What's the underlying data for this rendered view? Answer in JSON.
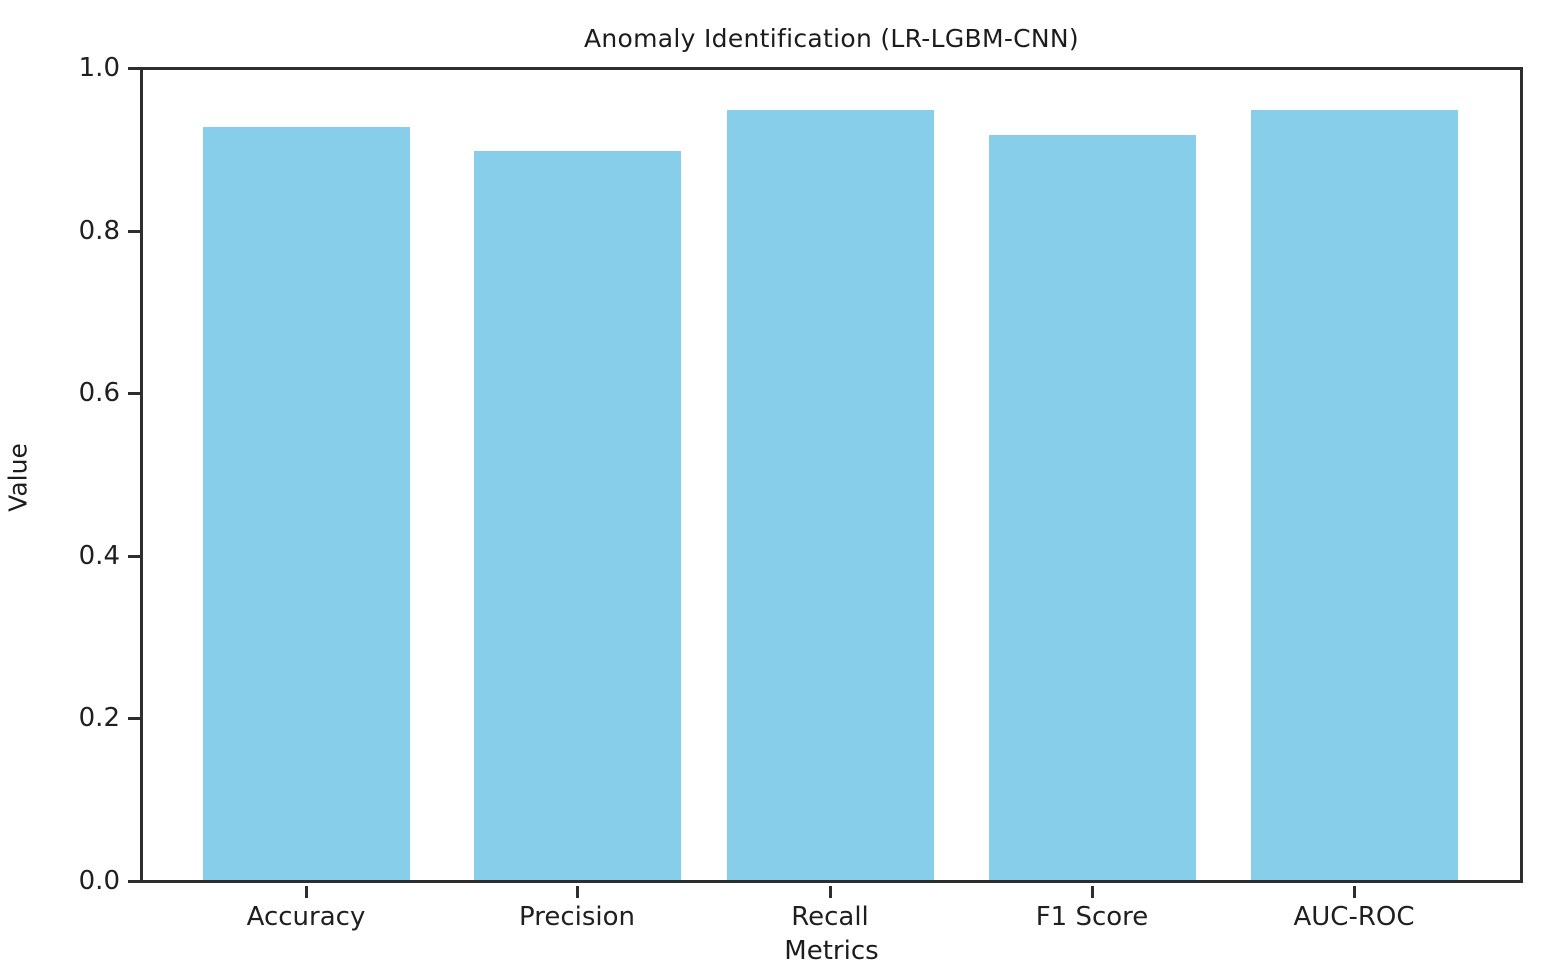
{
  "chart_data": {
    "type": "bar",
    "title": "Anomaly Identification (LR-LGBM-CNN)",
    "xlabel": "Metrics",
    "ylabel": "Value",
    "categories": [
      "Accuracy",
      "Precision",
      "Recall",
      "F1 Score",
      "AUC-ROC"
    ],
    "values": [
      0.93,
      0.9,
      0.95,
      0.92,
      0.95
    ],
    "ylim": [
      0.0,
      1.0
    ],
    "ytick_labels": [
      "0.0",
      "0.2",
      "0.4",
      "0.6",
      "0.8",
      "1.0"
    ],
    "bar_color": "#87CEEB",
    "spine_color": "#2e2e2e",
    "grid": false,
    "legend_position": "none"
  }
}
